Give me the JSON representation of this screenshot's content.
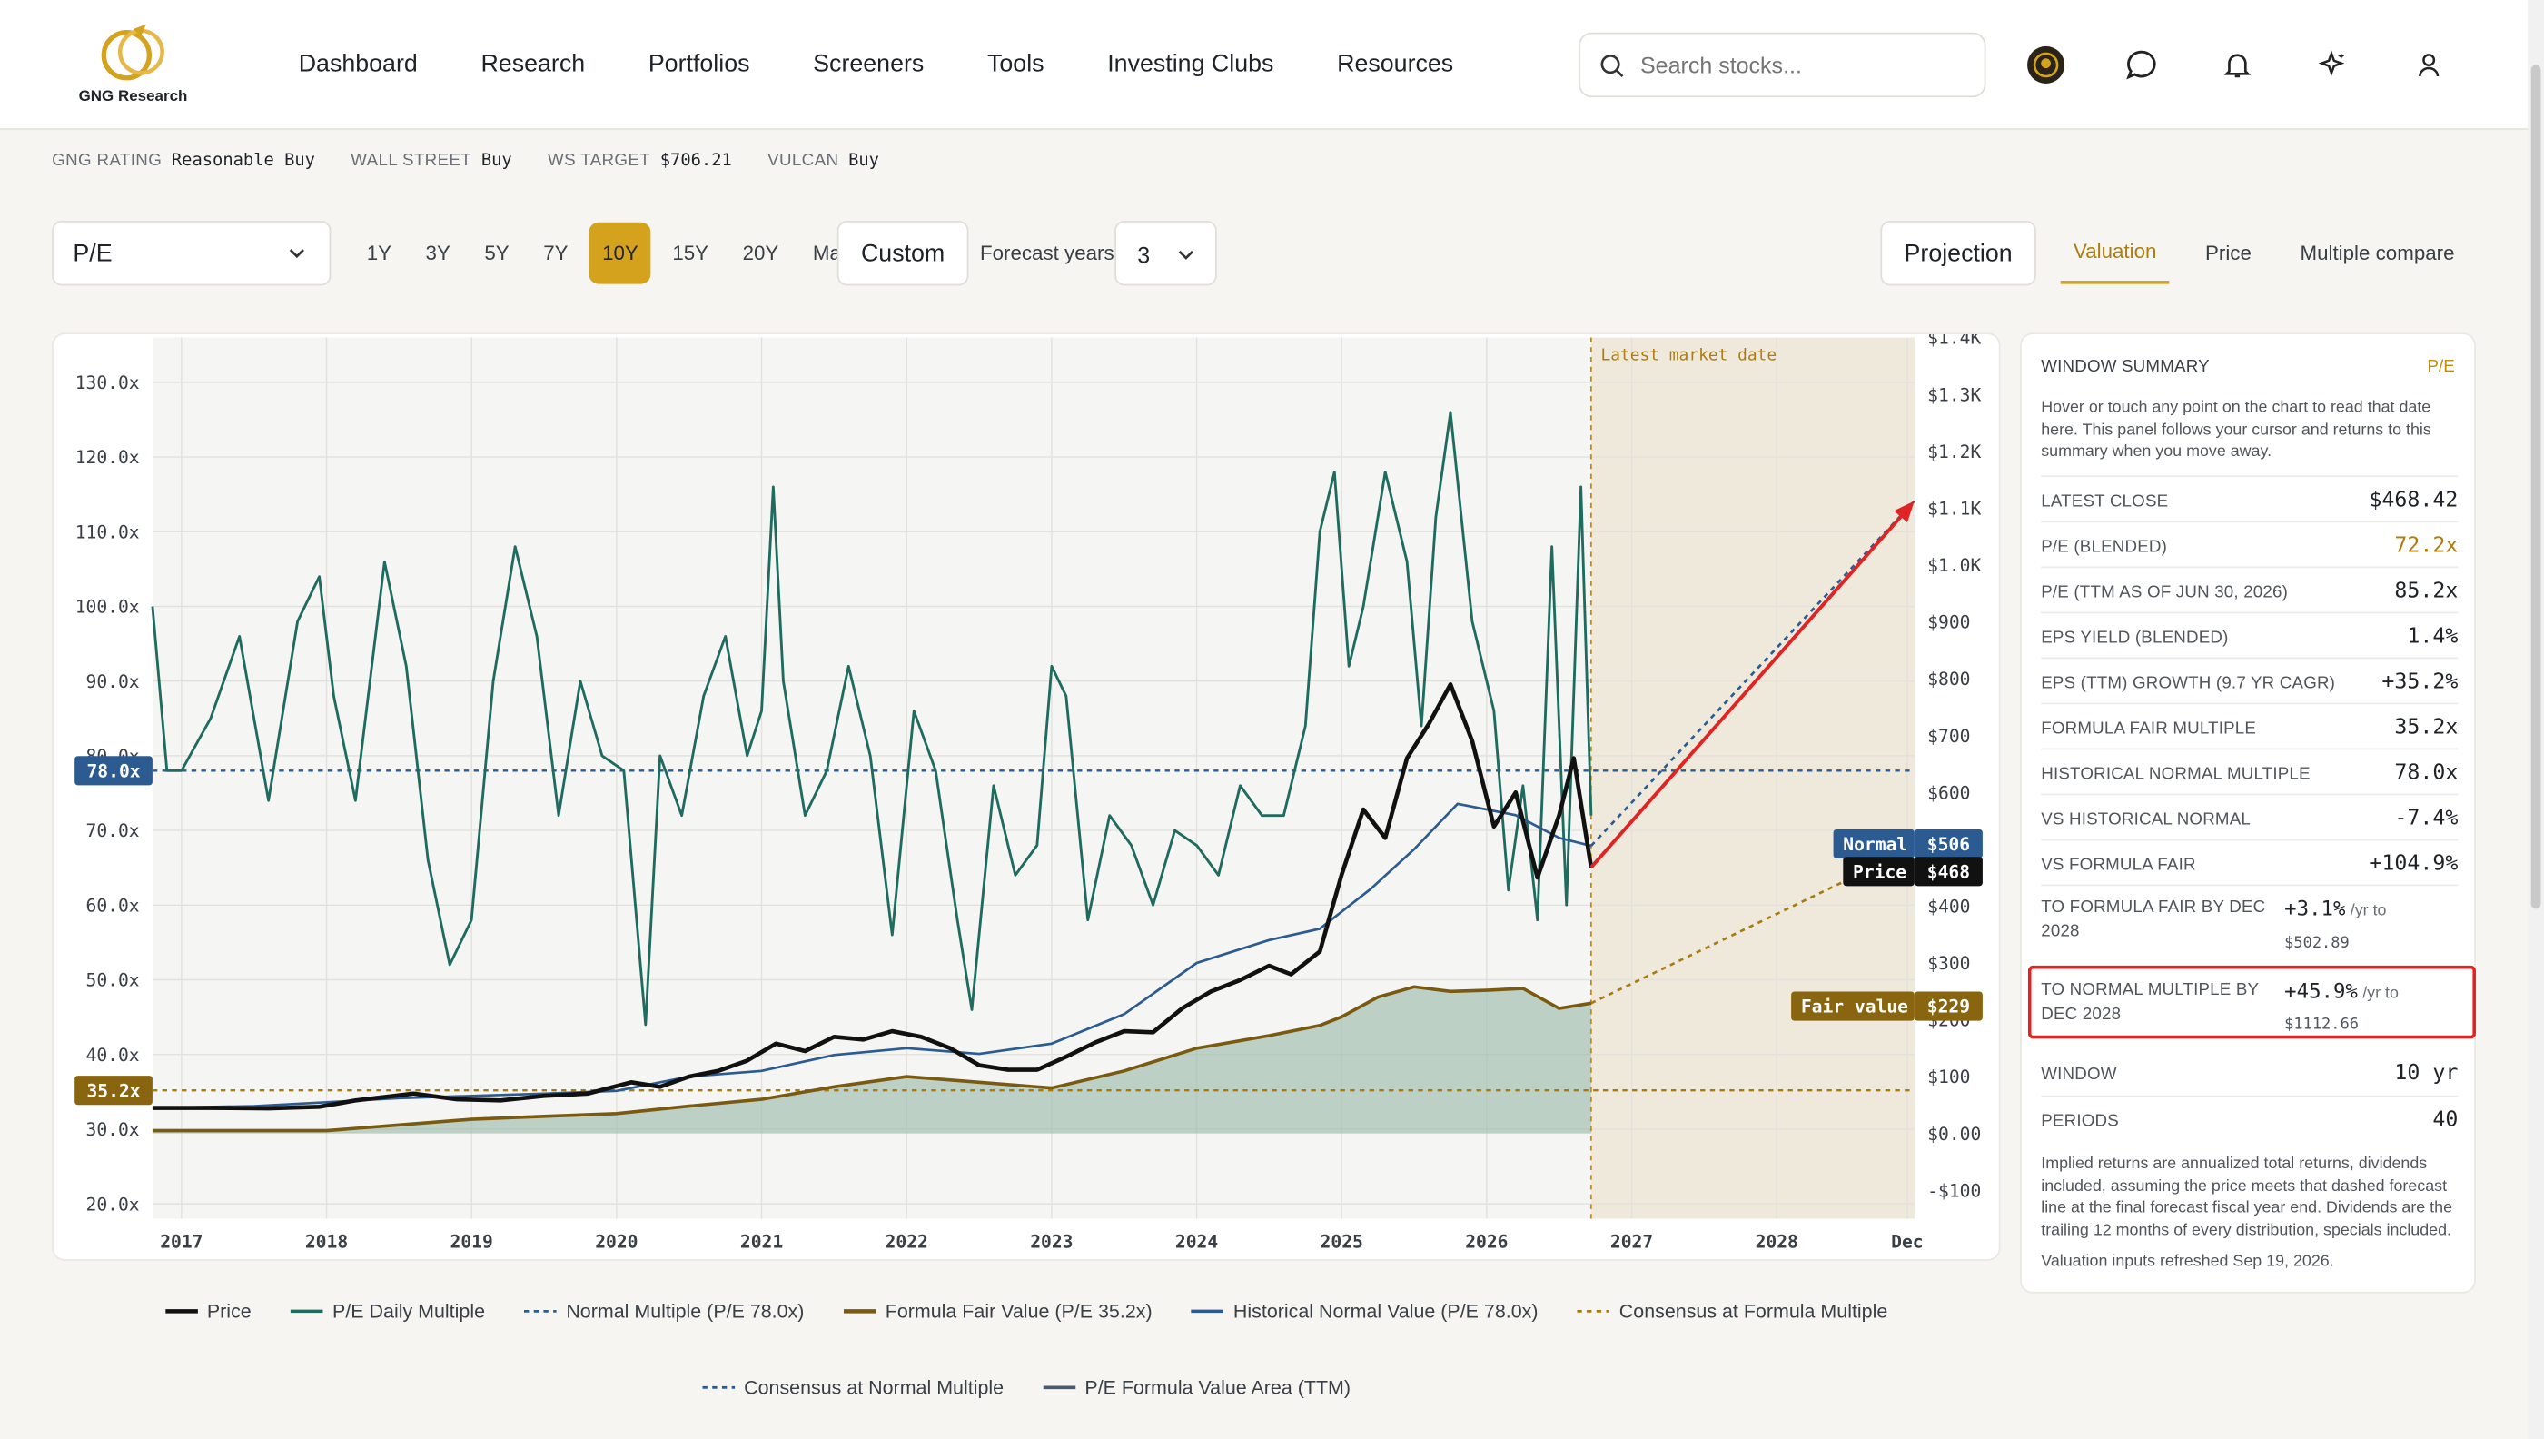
{
  "app": {
    "logo_text": "GNG Research"
  },
  "nav": [
    "Dashboard",
    "Research",
    "Portfolios",
    "Screeners",
    "Tools",
    "Investing Clubs",
    "Resources"
  ],
  "search": {
    "placeholder": "Search stocks..."
  },
  "ratings": [
    {
      "label": "GNG RATING",
      "value": "Reasonable Buy"
    },
    {
      "label": "WALL STREET",
      "value": "Buy"
    },
    {
      "label": "WS TARGET",
      "value": "$706.21"
    },
    {
      "label": "VULCAN",
      "value": "Buy"
    }
  ],
  "controls": {
    "metric": "P/E",
    "periods": [
      "1Y",
      "3Y",
      "5Y",
      "7Y",
      "10Y",
      "15Y",
      "20Y",
      "Max"
    ],
    "active_period": "10Y",
    "custom": "Custom",
    "forecast_label": "Forecast years",
    "forecast_value": "3",
    "projection": "Projection",
    "view_tabs": [
      "Valuation",
      "Price",
      "Multiple compare"
    ],
    "active_view": "Valuation"
  },
  "chart_data": {
    "type": "line",
    "x_ticks": [
      "2017",
      "2018",
      "2019",
      "2020",
      "2021",
      "2022",
      "2023",
      "2024",
      "2025",
      "2026",
      "2027",
      "2028",
      "Dec"
    ],
    "xlim": [
      2016.8,
      2028.95
    ],
    "y_left": {
      "ticks": [
        "130.0x",
        "120.0x",
        "110.0x",
        "100.0x",
        "90.0x",
        "80.0x",
        "70.0x",
        "60.0x",
        "50.0x",
        "40.0x",
        "30.0x",
        "20.0x"
      ],
      "ylim": [
        18,
        136
      ]
    },
    "y_right": {
      "ticks": [
        "$1.4K",
        "$1.3K",
        "$1.2K",
        "$1.1K",
        "$1.0K",
        "$900",
        "$800",
        "$700",
        "$600",
        "$500",
        "$400",
        "$300",
        "$200",
        "$100",
        "$0.00",
        "-$100"
      ],
      "ylim": [
        -150,
        1400
      ]
    },
    "annotation_latest": "Latest market date",
    "latest_date": 2026.72,
    "normal_multiple": 78.0,
    "fair_multiple": 35.2,
    "badges": {
      "normal_left": "78.0x",
      "fair_left": "35.2x",
      "normal_right": "Normal",
      "normal_right_val": "$506",
      "price_right": "Price",
      "price_right_val": "$468",
      "fair_right": "Fair value",
      "fair_right_val": "$229"
    },
    "series": [
      {
        "name": "P/E Daily Multiple",
        "color": "#1f6b5f",
        "x": [
          2016.8,
          2016.9,
          2017.0,
          2017.2,
          2017.4,
          2017.6,
          2017.8,
          2017.95,
          2018.05,
          2018.2,
          2018.4,
          2018.55,
          2018.7,
          2018.85,
          2019.0,
          2019.15,
          2019.3,
          2019.45,
          2019.6,
          2019.75,
          2019.9,
          2020.05,
          2020.2,
          2020.3,
          2020.45,
          2020.6,
          2020.75,
          2020.9,
          2021.0,
          2021.08,
          2021.15,
          2021.3,
          2021.45,
          2021.6,
          2021.75,
          2021.9,
          2022.05,
          2022.2,
          2022.35,
          2022.45,
          2022.6,
          2022.75,
          2022.9,
          2023.0,
          2023.1,
          2023.25,
          2023.4,
          2023.55,
          2023.7,
          2023.85,
          2024.0,
          2024.15,
          2024.3,
          2024.45,
          2024.6,
          2024.75,
          2024.85,
          2024.95,
          2025.05,
          2025.15,
          2025.3,
          2025.45,
          2025.55,
          2025.65,
          2025.75,
          2025.9,
          2026.05,
          2026.15,
          2026.25,
          2026.35,
          2026.45,
          2026.55,
          2026.65,
          2026.72
        ],
        "y": [
          100,
          78,
          78,
          85,
          96,
          74,
          98,
          104,
          88,
          74,
          106,
          92,
          66,
          52,
          58,
          90,
          108,
          96,
          72,
          90,
          80,
          78,
          44,
          80,
          72,
          88,
          96,
          80,
          86,
          116,
          90,
          72,
          78,
          92,
          80,
          56,
          86,
          78,
          58,
          46,
          76,
          64,
          68,
          92,
          88,
          58,
          72,
          68,
          60,
          70,
          68,
          64,
          76,
          72,
          72,
          84,
          110,
          118,
          92,
          100,
          118,
          106,
          84,
          112,
          126,
          98,
          86,
          62,
          76,
          58,
          108,
          60,
          116,
          72
        ]
      },
      {
        "name": "Price",
        "color": "#111111",
        "x": [
          2016.8,
          2017.2,
          2017.6,
          2017.95,
          2018.2,
          2018.6,
          2018.9,
          2019.2,
          2019.5,
          2019.8,
          2020.1,
          2020.3,
          2020.5,
          2020.7,
          2020.9,
          2021.1,
          2021.3,
          2021.5,
          2021.7,
          2021.9,
          2022.1,
          2022.3,
          2022.5,
          2022.7,
          2022.9,
          2023.1,
          2023.3,
          2023.5,
          2023.7,
          2023.9,
          2024.1,
          2024.3,
          2024.5,
          2024.65,
          2024.85,
          2025.0,
          2025.15,
          2025.3,
          2025.45,
          2025.6,
          2025.75,
          2025.9,
          2026.05,
          2026.2,
          2026.35,
          2026.5,
          2026.6,
          2026.72
        ],
        "y": [
          45,
          45,
          44,
          47,
          58,
          70,
          60,
          58,
          66,
          70,
          90,
          82,
          100,
          110,
          128,
          158,
          145,
          170,
          165,
          180,
          170,
          150,
          120,
          112,
          112,
          135,
          160,
          180,
          178,
          220,
          250,
          270,
          295,
          280,
          320,
          455,
          570,
          520,
          660,
          720,
          790,
          690,
          540,
          600,
          450,
          560,
          660,
          468
        ]
      },
      {
        "name": "Historical Normal Value (P/E 78.0x)",
        "color": "#2c5b91",
        "x": [
          2016.8,
          2017.5,
          2018.0,
          2018.5,
          2019.0,
          2019.5,
          2020.0,
          2020.5,
          2021.0,
          2021.5,
          2022.0,
          2022.5,
          2023.0,
          2023.5,
          2024.0,
          2024.5,
          2024.85,
          2025.2,
          2025.5,
          2025.8,
          2026.2,
          2026.5,
          2026.72
        ],
        "y": [
          45,
          48,
          55,
          62,
          66,
          70,
          75,
          100,
          110,
          138,
          150,
          140,
          158,
          210,
          300,
          340,
          360,
          430,
          500,
          580,
          560,
          520,
          506
        ]
      },
      {
        "name": "Formula Fair Value (P/E 35.2x)",
        "color": "#7a5a10",
        "x": [
          2016.8,
          2017.5,
          2018.0,
          2018.5,
          2019.0,
          2019.5,
          2020.0,
          2020.5,
          2021.0,
          2021.5,
          2022.0,
          2022.5,
          2023.0,
          2023.5,
          2024.0,
          2024.5,
          2024.85,
          2025.0,
          2025.25,
          2025.5,
          2025.75,
          2026.0,
          2026.25,
          2026.5,
          2026.72
        ],
        "y": [
          5,
          5,
          5,
          15,
          25,
          30,
          35,
          48,
          60,
          82,
          100,
          90,
          80,
          110,
          150,
          172,
          190,
          205,
          240,
          258,
          250,
          252,
          255,
          220,
          229
        ]
      },
      {
        "name": "Consensus at Normal Multiple",
        "color": "#2c5b91",
        "dashed": true,
        "x": [
          2026.72,
          2028.95
        ],
        "y": [
          506,
          1112.66
        ]
      },
      {
        "name": "Consensus at Formula Multiple",
        "color": "#a67c12",
        "dashed": true,
        "x": [
          2026.72,
          2028.95
        ],
        "y": [
          229,
          502.89
        ]
      }
    ]
  },
  "legend": {
    "row1": [
      "Price",
      "P/E Daily Multiple",
      "Normal Multiple (P/E 78.0x)",
      "Formula Fair Value (P/E 35.2x)",
      "Historical Normal Value (P/E 78.0x)",
      "Consensus at Formula Multiple"
    ],
    "row2": [
      "Consensus at Normal Multiple",
      "P/E Formula Value Area (TTM)"
    ]
  },
  "summary": {
    "title": "WINDOW SUMMARY",
    "metric": "P/E",
    "description": "Hover or touch any point on the chart to read that date here. This panel follows your cursor and returns to this summary when you move away.",
    "rows": [
      {
        "k": "LATEST CLOSE",
        "v": "$468.42"
      },
      {
        "k": "P/E (BLENDED)",
        "v": "72.2x"
      },
      {
        "k": "P/E (TTM AS OF JUN 30, 2026)",
        "v": "85.2x"
      },
      {
        "k": "EPS YIELD (BLENDED)",
        "v": "1.4%"
      },
      {
        "k": "EPS (TTM) GROWTH (9.7 YR CAGR)",
        "v": "+35.2%"
      },
      {
        "k": "FORMULA FAIR MULTIPLE",
        "v": "35.2x"
      },
      {
        "k": "HISTORICAL NORMAL MULTIPLE",
        "v": "78.0x"
      },
      {
        "k": "VS HISTORICAL NORMAL",
        "v": "-7.4%"
      },
      {
        "k": "VS FORMULA FAIR",
        "v": "+104.9%"
      }
    ],
    "to_fair": {
      "k": "TO FORMULA FAIR BY DEC 2028",
      "v": "+3.1%",
      "suffix": "/yr to",
      "sub": "$502.89"
    },
    "to_normal": {
      "k": "TO NORMAL MULTIPLE BY DEC 2028",
      "v": "+45.9%",
      "suffix": "/yr to",
      "sub": "$1112.66"
    },
    "window": {
      "k": "WINDOW",
      "v": "10 yr"
    },
    "periods": {
      "k": "PERIODS",
      "v": "40"
    },
    "note": "Implied returns are annualized total returns, dividends included, assuming the price meets that dashed forecast line at the final forecast fiscal year end. Dividends are the trailing 12 months of every distribution, specials included.",
    "refreshed": "Valuation inputs refreshed Sep 19, 2026."
  }
}
